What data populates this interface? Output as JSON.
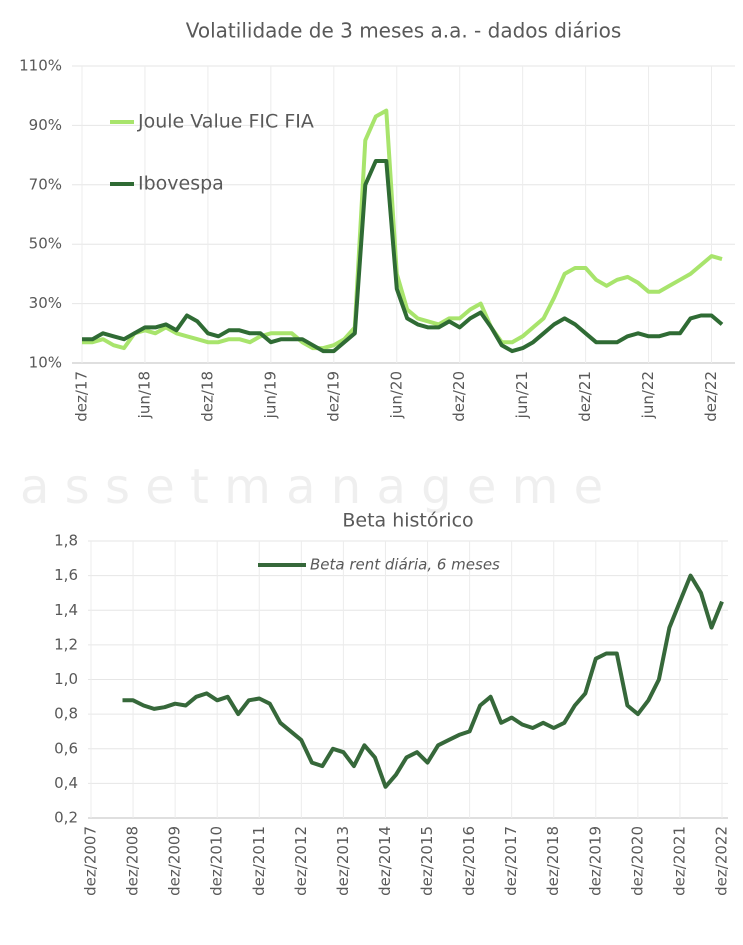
{
  "watermark": "a s s e t   m a n a g e m e",
  "chart_data": [
    {
      "type": "line",
      "title": "Volatilidade de 3 meses a.a. - dados diários",
      "categories": [
        "dez/17",
        null,
        null,
        null,
        null,
        null,
        "jun/18",
        null,
        null,
        null,
        null,
        null,
        "dez/18",
        null,
        null,
        null,
        null,
        null,
        "jun/19",
        null,
        null,
        null,
        null,
        null,
        "dez/19",
        null,
        null,
        null,
        null,
        null,
        "jun/20",
        null,
        null,
        null,
        null,
        null,
        "dez/20",
        null,
        null,
        null,
        null,
        null,
        "jun/21",
        null,
        null,
        null,
        null,
        null,
        "dez/21",
        null,
        null,
        null,
        null,
        null,
        "jun/22",
        null,
        null,
        null,
        null,
        null,
        "dez/22",
        null
      ],
      "series": [
        {
          "name": "Joule Value FIC FIA",
          "color": "#a8e46c",
          "values": [
            17,
            17,
            18,
            16,
            15,
            20,
            21,
            20,
            22,
            20,
            19,
            18,
            17,
            17,
            18,
            18,
            17,
            19,
            20,
            20,
            20,
            17,
            15,
            15,
            16,
            18,
            22,
            85,
            93,
            95,
            40,
            28,
            25,
            24,
            23,
            25,
            25,
            28,
            30,
            22,
            17,
            17,
            19,
            22,
            25,
            32,
            40,
            42,
            42,
            38,
            36,
            38,
            39,
            37,
            34,
            34,
            36,
            38,
            40,
            43,
            46,
            45
          ]
        },
        {
          "name": "Ibovespa",
          "color": "#2f6b34",
          "values": [
            18,
            18,
            20,
            19,
            18,
            20,
            22,
            22,
            23,
            21,
            26,
            24,
            20,
            19,
            21,
            21,
            20,
            20,
            17,
            18,
            18,
            18,
            16,
            14,
            14,
            17,
            20,
            70,
            78,
            78,
            35,
            25,
            23,
            22,
            22,
            24,
            22,
            25,
            27,
            22,
            16,
            14,
            15,
            17,
            20,
            23,
            25,
            23,
            20,
            17,
            17,
            17,
            19,
            20,
            19,
            19,
            20,
            20,
            25,
            26,
            26,
            23
          ]
        }
      ],
      "ylim": [
        10,
        110
      ],
      "yticks": [
        {
          "value": 10,
          "label": "10%"
        },
        {
          "value": 30,
          "label": "30%"
        },
        {
          "value": 50,
          "label": "50%"
        },
        {
          "value": 70,
          "label": "70%"
        },
        {
          "value": 90,
          "label": "90%"
        },
        {
          "value": 110,
          "label": "110%"
        }
      ],
      "grid": true,
      "legend": "upper left"
    },
    {
      "type": "line",
      "title": "Beta histórico",
      "categories": [
        "dez/2007",
        null,
        null,
        null,
        "dez/2008",
        null,
        null,
        null,
        "dez/2009",
        null,
        null,
        null,
        "dez/2010",
        null,
        null,
        null,
        "dez/2011",
        null,
        null,
        null,
        "dez/2012",
        null,
        null,
        null,
        "dez/2013",
        null,
        null,
        null,
        "dez/2014",
        null,
        null,
        null,
        "dez/2015",
        null,
        null,
        null,
        "dez/2016",
        null,
        null,
        null,
        "dez/2017",
        null,
        null,
        null,
        "dez/2018",
        null,
        null,
        null,
        "dez/2019",
        null,
        null,
        null,
        "dez/2020",
        null,
        null,
        null,
        "dez/2021",
        null,
        null,
        null,
        "dez/2022"
      ],
      "series": [
        {
          "name": "Beta rent diária, 6 meses",
          "color": "#36683a",
          "values": [
            null,
            null,
            null,
            0.88,
            0.88,
            0.85,
            0.83,
            0.84,
            0.86,
            0.85,
            0.9,
            0.92,
            0.88,
            0.9,
            0.8,
            0.88,
            0.89,
            0.86,
            0.75,
            0.7,
            0.65,
            0.52,
            0.5,
            0.6,
            0.58,
            0.5,
            0.62,
            0.55,
            0.38,
            0.45,
            0.55,
            0.58,
            0.52,
            0.62,
            0.65,
            0.68,
            0.7,
            0.85,
            0.9,
            0.75,
            0.78,
            0.74,
            0.72,
            0.75,
            0.72,
            0.75,
            0.85,
            0.92,
            1.12,
            1.15,
            1.15,
            0.85,
            0.8,
            0.88,
            1.0,
            1.3,
            1.45,
            1.6,
            1.5,
            1.3,
            1.45
          ]
        }
      ],
      "ylim": [
        0.2,
        1.8
      ],
      "yticks": [
        {
          "value": 0.2,
          "label": "0,2"
        },
        {
          "value": 0.4,
          "label": "0,4"
        },
        {
          "value": 0.6,
          "label": "0,6"
        },
        {
          "value": 0.8,
          "label": "0,8"
        },
        {
          "value": 1.0,
          "label": "1,0"
        },
        {
          "value": 1.2,
          "label": "1,2"
        },
        {
          "value": 1.4,
          "label": "1,4"
        },
        {
          "value": 1.6,
          "label": "1,6"
        },
        {
          "value": 1.8,
          "label": "1,8"
        }
      ],
      "grid": true,
      "legend": "upper center"
    }
  ]
}
